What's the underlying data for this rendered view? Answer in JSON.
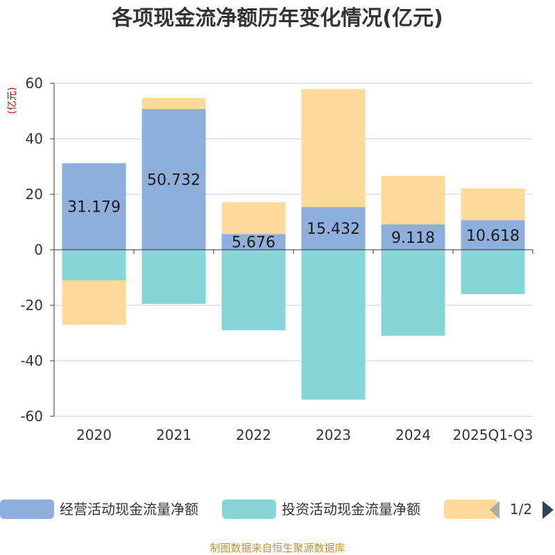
{
  "chart_data": {
    "type": "bar",
    "stacked": true,
    "title": "各项现金流净额历年变化情况(亿元)",
    "unit_label": "(亿元)",
    "categories": [
      "2020",
      "2021",
      "2022",
      "2023",
      "2024",
      "2025Q1-Q3"
    ],
    "ylim": [
      -60,
      60
    ],
    "yticks": [
      60,
      40,
      20,
      0,
      -20,
      -40,
      -60
    ],
    "grid": true,
    "series": [
      {
        "name": "经营活动现金流量净额",
        "color": "#8eaedb",
        "values": [
          31.179,
          50.732,
          5.676,
          15.432,
          9.118,
          10.618
        ],
        "labels": [
          "31.179",
          "50.732",
          "5.676",
          "15.432",
          "9.118",
          "10.618"
        ]
      },
      {
        "name": "投资活动现金流量净额",
        "color": "#86d6d8",
        "values": [
          -11,
          -19.5,
          -29,
          -54,
          -31,
          -16
        ]
      },
      {
        "name": "",
        "color": "#fdd99a",
        "values": [
          -16,
          4,
          11.5,
          42.5,
          17.5,
          11.5
        ]
      }
    ],
    "legend": {
      "placement": "bottom",
      "page": "1/2"
    }
  },
  "source_text": "制图数据来自恒生聚源数据库"
}
